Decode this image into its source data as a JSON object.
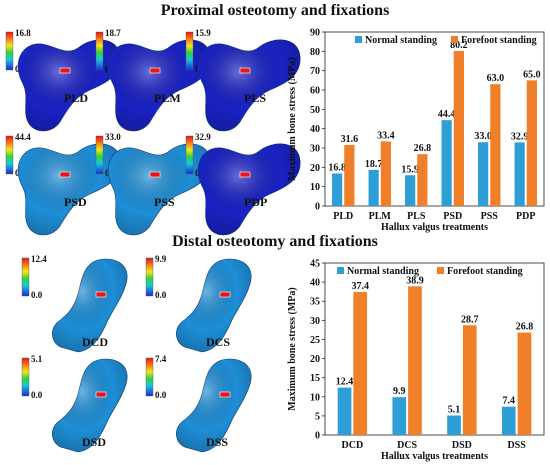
{
  "titles": {
    "proximal": "Proximal osteotomy and fixations",
    "distal": "Distal osteotomy and fixations"
  },
  "colors": {
    "normal": "#2e9fd6",
    "forefoot": "#f07f2a",
    "bone_blue": "#1e8ed6",
    "bone_dark": "#1a22c4"
  },
  "fe_models": {
    "proximal": [
      {
        "label": "PLD",
        "max": "16.8",
        "min": "0.0",
        "color": "#1a22c4"
      },
      {
        "label": "PLM",
        "max": "18.7",
        "min": "0.0",
        "color": "#1a22c4"
      },
      {
        "label": "PLS",
        "max": "15.9",
        "min": "0.0",
        "color": "#1a22c4"
      },
      {
        "label": "PSD",
        "max": "44.4",
        "min": "0.0",
        "color": "#1e8ed6"
      },
      {
        "label": "PSS",
        "max": "33.0",
        "min": "0.0",
        "color": "#1e8ed6"
      },
      {
        "label": "PDP",
        "max": "32.9",
        "min": "0.0",
        "color": "#1a22c4"
      }
    ],
    "distal": [
      {
        "label": "DCD",
        "max": "12.4",
        "min": "0.0",
        "color": "#1e8ed6"
      },
      {
        "label": "DCS",
        "max": "9.9",
        "min": "0.0",
        "color": "#1e8ed6"
      },
      {
        "label": "DSD",
        "max": "5.1",
        "min": "0.0",
        "color": "#1e8ed6"
      },
      {
        "label": "DSS",
        "max": "7.4",
        "min": "0.0",
        "color": "#1e8ed6"
      }
    ]
  },
  "chart_data": [
    {
      "type": "bar",
      "categories": [
        "PLD",
        "PLM",
        "PLS",
        "PSD",
        "PSS",
        "PDP"
      ],
      "series": [
        {
          "name": "Normal standing",
          "values": [
            16.8,
            18.7,
            15.9,
            44.4,
            33.0,
            32.9
          ],
          "labels": [
            "16.8",
            "18.7",
            "15.9",
            "44.4",
            "33.0",
            "32.9"
          ]
        },
        {
          "name": "Forefoot standing",
          "values": [
            31.6,
            33.4,
            26.8,
            80.2,
            63.0,
            65.0
          ],
          "labels": [
            "31.6",
            "33.4",
            "26.8",
            "80.2",
            "63.0",
            "65.0"
          ]
        }
      ],
      "xlabel": "Hallux valgus treatments",
      "ylabel": "Maximum bone stress (MPa)",
      "ylim": [
        0,
        90
      ],
      "yticks": [
        0,
        10,
        20,
        30,
        40,
        50,
        60,
        70,
        80,
        90
      ],
      "legend": "top"
    },
    {
      "type": "bar",
      "categories": [
        "DCD",
        "DCS",
        "DSD",
        "DSS"
      ],
      "series": [
        {
          "name": "Normal standing",
          "values": [
            12.4,
            9.9,
            5.1,
            7.4
          ],
          "labels": [
            "12.4",
            "9.9",
            "5.1",
            "7.4"
          ]
        },
        {
          "name": "Forefoot standing",
          "values": [
            37.4,
            38.9,
            28.7,
            26.8
          ],
          "labels": [
            "37.4",
            "38.9",
            "28.7",
            "26.8"
          ]
        }
      ],
      "xlabel": "Hallux valgus treatments",
      "ylabel": "Maximum bone stress (MPa)",
      "ylim": [
        0,
        45
      ],
      "yticks": [
        0,
        5,
        10,
        15,
        20,
        25,
        30,
        35,
        40,
        45
      ],
      "legend": "top"
    }
  ]
}
